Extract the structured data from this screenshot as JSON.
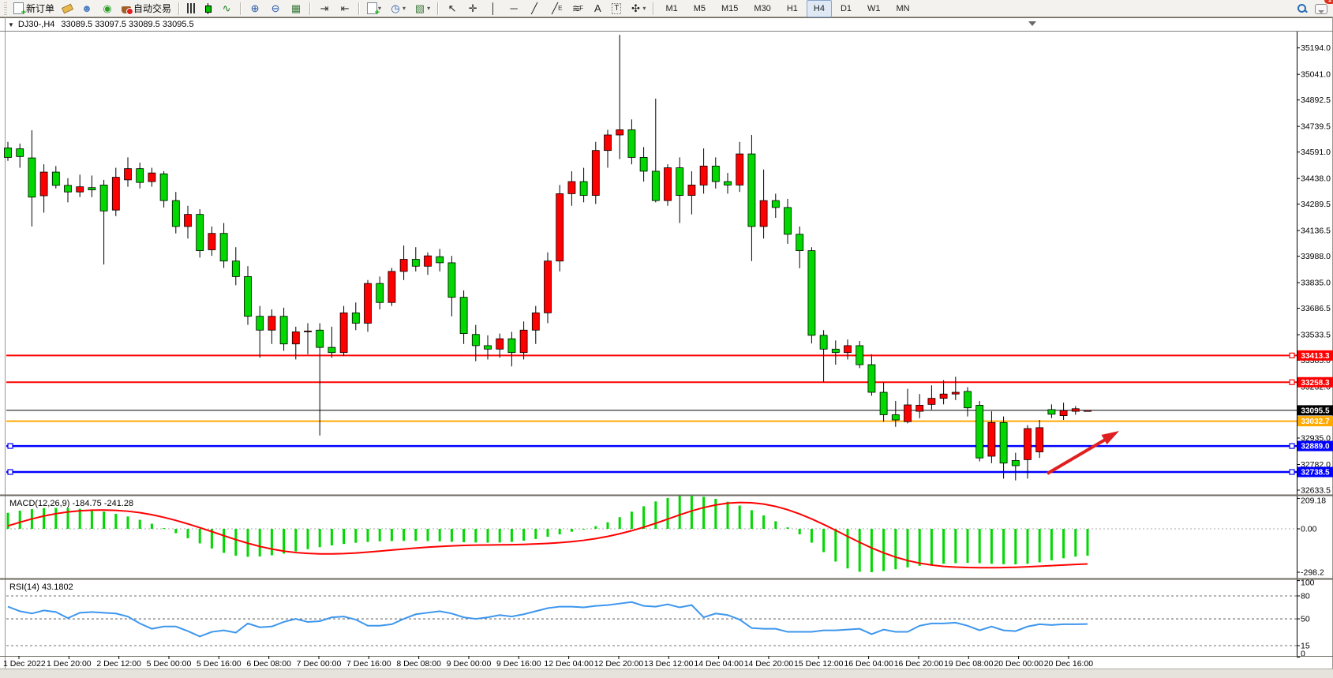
{
  "toolbar": {
    "items": [
      {
        "t": "grip"
      },
      {
        "t": "btn",
        "name": "new-order-button",
        "css": "i-docplus",
        "label": "新订单"
      },
      {
        "t": "btn",
        "name": "eraser-tool-button",
        "css": "i-eraser"
      },
      {
        "t": "btn",
        "name": "expert-advisors-button",
        "g": "☻",
        "c": "#4a7ebf"
      },
      {
        "t": "btn",
        "name": "signals-button",
        "g": "◉",
        "c": "#2aa02a"
      },
      {
        "t": "btn",
        "name": "autotrading-button",
        "css": "i-pot",
        "label": "自动交易"
      },
      {
        "t": "sep"
      },
      {
        "t": "btn",
        "name": "bar-chart-button",
        "css": "i-bars"
      },
      {
        "t": "btn",
        "name": "candlestick-chart-button",
        "css": "i-candle"
      },
      {
        "t": "btn",
        "name": "line-chart-button",
        "g": "∿",
        "c": "#1c7a1c"
      },
      {
        "t": "sep"
      },
      {
        "t": "btn",
        "name": "zoom-in-button",
        "g": "⊕",
        "c": "#2458a8"
      },
      {
        "t": "btn",
        "name": "zoom-out-button",
        "g": "⊖",
        "c": "#2458a8"
      },
      {
        "t": "btn",
        "name": "tile-windows-button",
        "g": "▦",
        "c": "#3a7a3a"
      },
      {
        "t": "sep"
      },
      {
        "t": "btn",
        "name": "chart-shift-button",
        "g": "⇥",
        "c": "#333333"
      },
      {
        "t": "btn",
        "name": "auto-scroll-button",
        "g": "⇤",
        "c": "#333333"
      },
      {
        "t": "sep"
      },
      {
        "t": "btn",
        "name": "new-chart-button",
        "css": "i-docplus",
        "dd": true
      },
      {
        "t": "btn",
        "name": "periods-button",
        "g": "◷",
        "c": "#2458a8",
        "dd": true
      },
      {
        "t": "btn",
        "name": "chart-profile-button",
        "g": "▧",
        "c": "#3a7a3a",
        "dd": true
      },
      {
        "t": "sep"
      },
      {
        "t": "btn",
        "name": "cursor-tool-button",
        "g": "↖",
        "c": "#222222"
      },
      {
        "t": "btn",
        "name": "crosshair-tool-button",
        "g": "✛",
        "c": "#222222"
      },
      {
        "t": "btn",
        "name": "vertical-line-tool-button",
        "g": "│",
        "c": "#222222"
      },
      {
        "t": "btn",
        "name": "horizontal-line-tool-button",
        "g": "─",
        "c": "#222222"
      },
      {
        "t": "btn",
        "name": "trendline-tool-button",
        "g": "╱",
        "c": "#222222"
      },
      {
        "t": "btn",
        "name": "equidistant-channel-tool-button",
        "g": "╱",
        "c": "#222222",
        "sub": "E"
      },
      {
        "t": "btn",
        "name": "fibonacci-tool-button",
        "g": "≋",
        "c": "#222222",
        "sub": "F"
      },
      {
        "t": "btn",
        "name": "text-tool-button",
        "g": "A",
        "c": "#222222"
      },
      {
        "t": "btn",
        "name": "text-label-tool-button",
        "g": "T",
        "c": "#222222",
        "box": true
      },
      {
        "t": "btn",
        "name": "arrows-tool-button",
        "g": "✣",
        "c": "#222222",
        "dd": true
      },
      {
        "t": "sep"
      },
      {
        "t": "tf",
        "name": "timeframe-m1-button",
        "label": "M1"
      },
      {
        "t": "tf",
        "name": "timeframe-m5-button",
        "label": "M5"
      },
      {
        "t": "tf",
        "name": "timeframe-m15-button",
        "label": "M15"
      },
      {
        "t": "tf",
        "name": "timeframe-m30-button",
        "label": "M30"
      },
      {
        "t": "tf",
        "name": "timeframe-h1-button",
        "label": "H1"
      },
      {
        "t": "tf",
        "name": "timeframe-h4-button",
        "label": "H4",
        "active": true
      },
      {
        "t": "tf",
        "name": "timeframe-d1-button",
        "label": "D1"
      },
      {
        "t": "tf",
        "name": "timeframe-w1-button",
        "label": "W1"
      },
      {
        "t": "tf",
        "name": "timeframe-mn-button",
        "label": "MN"
      },
      {
        "t": "spacer"
      },
      {
        "t": "btn",
        "name": "search-button",
        "css": "i-mag"
      },
      {
        "t": "btn",
        "name": "notifications-button",
        "css": "i-chat",
        "badge": "1"
      }
    ]
  },
  "title": {
    "symbol": "DJ30-,H4",
    "ohlc": "33089.5 33097.5 33089.5 33095.5"
  },
  "indicators": {
    "macd_label": "MACD(12,26,9) -184.75 -241.28",
    "rsi_label": "RSI(14) 43.1802"
  },
  "chart_data": {
    "type": "candlestick",
    "symbol": "DJ30-",
    "timeframe": "H4",
    "current_bar": {
      "open": 33089.5,
      "high": 33097.5,
      "low": 33089.5,
      "close": 33095.5
    },
    "up_color": "#ff0000",
    "down_color": "#00d800",
    "price_axis_ticks": [
      "35194.0",
      "35041.0",
      "34892.5",
      "34739.5",
      "34591.0",
      "34438.0",
      "34289.5",
      "34136.5",
      "33988.0",
      "33835.0",
      "33686.5",
      "33533.5",
      "33385.0",
      "33232.0",
      "33083.5",
      "32935.0",
      "32782.0",
      "32633.5"
    ],
    "price_lines": [
      {
        "value": 33413.3,
        "label": "33413.3",
        "color": "#ff0000",
        "width": 2,
        "handles": "right"
      },
      {
        "value": 33258.3,
        "label": "33258.3",
        "color": "#ff0000",
        "width": 2,
        "handles": "right"
      },
      {
        "value": 33095.5,
        "label": "33095.5",
        "color": "#000000",
        "width": 1,
        "handles": "none"
      },
      {
        "value": 33032.7,
        "label": "33032.7",
        "color": "#ffa800",
        "width": 2,
        "handles": "none"
      },
      {
        "value": 32889.0,
        "label": "32889.0",
        "color": "#0000ff",
        "width": 2.5,
        "handles": "both"
      },
      {
        "value": 32738.5,
        "label": "32738.5",
        "color": "#0000ff",
        "width": 2.5,
        "handles": "both"
      }
    ],
    "time_labels": [
      "1 Dec 2022",
      "1 Dec 20:00",
      "2 Dec 12:00",
      "5 Dec 00:00",
      "5 Dec 16:00",
      "6 Dec 08:00",
      "7 Dec 00:00",
      "7 Dec 16:00",
      "8 Dec 08:00",
      "9 Dec 00:00",
      "9 Dec 16:00",
      "12 Dec 04:00",
      "12 Dec 20:00",
      "13 Dec 12:00",
      "14 Dec 04:00",
      "14 Dec 20:00",
      "15 Dec 12:00",
      "16 Dec 04:00",
      "16 Dec 20:00",
      "19 Dec 08:00",
      "20 Dec 00:00",
      "20 Dec 16:00"
    ],
    "candles": [
      [
        34615,
        34650,
        34540,
        34560
      ],
      [
        34610,
        34640,
        34500,
        34565
      ],
      [
        34557,
        34717,
        34160,
        34330
      ],
      [
        34338,
        34520,
        34240,
        34475
      ],
      [
        34475,
        34510,
        34380,
        34398
      ],
      [
        34398,
        34440,
        34300,
        34360
      ],
      [
        34360,
        34460,
        34330,
        34390
      ],
      [
        34385,
        34455,
        34330,
        34372
      ],
      [
        34400,
        34430,
        33940,
        34250
      ],
      [
        34255,
        34500,
        34220,
        34445
      ],
      [
        34430,
        34560,
        34390,
        34495
      ],
      [
        34495,
        34530,
        34380,
        34415
      ],
      [
        34420,
        34500,
        34390,
        34470
      ],
      [
        34465,
        34480,
        34270,
        34310
      ],
      [
        34310,
        34360,
        34120,
        34160
      ],
      [
        34160,
        34280,
        34090,
        34230
      ],
      [
        34230,
        34260,
        33980,
        34020
      ],
      [
        34025,
        34160,
        33990,
        34120
      ],
      [
        34120,
        34180,
        33920,
        33960
      ],
      [
        33960,
        34040,
        33820,
        33870
      ],
      [
        33870,
        33930,
        33590,
        33640
      ],
      [
        33640,
        33700,
        33400,
        33560
      ],
      [
        33560,
        33680,
        33480,
        33640
      ],
      [
        33640,
        33690,
        33440,
        33480
      ],
      [
        33480,
        33580,
        33390,
        33550
      ],
      [
        33550,
        33600,
        33420,
        33555
      ],
      [
        33560,
        33600,
        32950,
        33460
      ],
      [
        33460,
        33580,
        33400,
        33430
      ],
      [
        33430,
        33700,
        33410,
        33660
      ],
      [
        33660,
        33720,
        33560,
        33600
      ],
      [
        33600,
        33850,
        33550,
        33830
      ],
      [
        33830,
        33870,
        33680,
        33720
      ],
      [
        33720,
        33920,
        33700,
        33900
      ],
      [
        33900,
        34050,
        33850,
        33970
      ],
      [
        33970,
        34040,
        33900,
        33930
      ],
      [
        33930,
        34010,
        33880,
        33990
      ],
      [
        33985,
        34030,
        33900,
        33950
      ],
      [
        33950,
        33990,
        33640,
        33750
      ],
      [
        33750,
        33790,
        33480,
        33540
      ],
      [
        33535,
        33590,
        33380,
        33470
      ],
      [
        33470,
        33530,
        33390,
        33450
      ],
      [
        33450,
        33540,
        33400,
        33510
      ],
      [
        33510,
        33550,
        33350,
        33430
      ],
      [
        33430,
        33610,
        33390,
        33560
      ],
      [
        33560,
        33700,
        33480,
        33660
      ],
      [
        33660,
        34010,
        33600,
        33960
      ],
      [
        33960,
        34400,
        33900,
        34350
      ],
      [
        34350,
        34480,
        34280,
        34420
      ],
      [
        34420,
        34500,
        34300,
        34340
      ],
      [
        34340,
        34650,
        34290,
        34600
      ],
      [
        34600,
        34720,
        34500,
        34690
      ],
      [
        34690,
        35270,
        34550,
        34720
      ],
      [
        34720,
        34780,
        34520,
        34560
      ],
      [
        34560,
        34620,
        34420,
        34480
      ],
      [
        34480,
        34900,
        34300,
        34310
      ],
      [
        34310,
        34520,
        34280,
        34500
      ],
      [
        34500,
        34560,
        34180,
        34340
      ],
      [
        34340,
        34480,
        34230,
        34400
      ],
      [
        34400,
        34612,
        34350,
        34510
      ],
      [
        34510,
        34560,
        34380,
        34420
      ],
      [
        34420,
        34470,
        34350,
        34400
      ],
      [
        34400,
        34650,
        34360,
        34580
      ],
      [
        34580,
        34690,
        33960,
        34160
      ],
      [
        34160,
        34490,
        34090,
        34310
      ],
      [
        34310,
        34350,
        34210,
        34270
      ],
      [
        34270,
        34320,
        34060,
        34115
      ],
      [
        34115,
        34160,
        33918,
        34020
      ],
      [
        34020,
        34040,
        33483,
        33530
      ],
      [
        33530,
        33560,
        33260,
        33450
      ],
      [
        33450,
        33500,
        33360,
        33430
      ],
      [
        33430,
        33506,
        33390,
        33470
      ],
      [
        33470,
        33497,
        33340,
        33360
      ],
      [
        33360,
        33420,
        33180,
        33200
      ],
      [
        33200,
        33260,
        33030,
        33070
      ],
      [
        33070,
        33150,
        33000,
        33040
      ],
      [
        33030,
        33220,
        33020,
        33127
      ],
      [
        33090,
        33190,
        33050,
        33125
      ],
      [
        33130,
        33240,
        33100,
        33165
      ],
      [
        33165,
        33270,
        33130,
        33190
      ],
      [
        33190,
        33290,
        33155,
        33200
      ],
      [
        33205,
        33230,
        33060,
        33110
      ],
      [
        33125,
        33150,
        32800,
        32820
      ],
      [
        32830,
        33090,
        32790,
        33025
      ],
      [
        33025,
        33060,
        32700,
        32790
      ],
      [
        32805,
        32850,
        32690,
        32775
      ],
      [
        32810,
        33010,
        32700,
        32990
      ],
      [
        32855,
        33040,
        32820,
        32995
      ],
      [
        33100,
        33130,
        33050,
        33073
      ],
      [
        33065,
        33140,
        33040,
        33095
      ],
      [
        33090,
        33120,
        33070,
        33105
      ],
      [
        33089.5,
        33097.5,
        33089.5,
        33095.5
      ]
    ],
    "macd": {
      "params": "12,26,9",
      "axis": [
        "209.18",
        "0.00",
        "-298.2"
      ],
      "hist_color": "#00d800",
      "signal_color": "#ff0000",
      "hist": [
        110,
        125,
        135,
        142,
        144,
        143,
        138,
        130,
        118,
        103,
        85,
        62,
        35,
        5,
        -30,
        -65,
        -100,
        -135,
        -165,
        -185,
        -192,
        -190,
        -182,
        -170,
        -155,
        -140,
        -126,
        -114,
        -104,
        -96,
        -90,
        -86,
        -84,
        -83,
        -83,
        -84,
        -86,
        -89,
        -92,
        -94,
        -95,
        -94,
        -90,
        -82,
        -70,
        -55,
        -38,
        -20,
        -2,
        18,
        45,
        80,
        118,
        155,
        188,
        212,
        225,
        227,
        220,
        206,
        186,
        160,
        128,
        92,
        52,
        10,
        -38,
        -95,
        -160,
        -225,
        -272,
        -295,
        -298,
        -290,
        -278,
        -265,
        -254,
        -246,
        -240,
        -236,
        -234,
        -236,
        -240,
        -243,
        -244,
        -240,
        -230,
        -216,
        -202,
        -191,
        -184.75
      ],
      "signal": [
        20,
        45,
        68,
        88,
        104,
        116,
        124,
        128,
        129,
        127,
        121,
        111,
        97,
        79,
        58,
        34,
        8,
        -19,
        -47,
        -74,
        -99,
        -121,
        -139,
        -153,
        -163,
        -169,
        -172,
        -172,
        -170,
        -166,
        -160,
        -153,
        -146,
        -139,
        -132,
        -126,
        -121,
        -117,
        -114,
        -112,
        -111,
        -110,
        -109,
        -107,
        -104,
        -100,
        -95,
        -88,
        -79,
        -67,
        -52,
        -34,
        -13,
        11,
        38,
        67,
        96,
        123,
        146,
        164,
        176,
        181,
        179,
        170,
        154,
        131,
        102,
        68,
        30,
        -10,
        -52,
        -93,
        -131,
        -165,
        -194,
        -218,
        -236,
        -249,
        -258,
        -263,
        -266,
        -267,
        -267,
        -266,
        -264,
        -261,
        -257,
        -253,
        -249,
        -245,
        -241.28
      ]
    },
    "rsi": {
      "period": 14,
      "axis": [
        "100",
        "80",
        "50",
        "15",
        "0"
      ],
      "levels": [
        80,
        50,
        15
      ],
      "color": "#3d96ee",
      "values": [
        66,
        60,
        57,
        61,
        59,
        51,
        58,
        59,
        58,
        57,
        53,
        44,
        37,
        40,
        40,
        34,
        27,
        33,
        35,
        32,
        44,
        39,
        40,
        46,
        50,
        46,
        47,
        52,
        53,
        49,
        41,
        41,
        43,
        50,
        56,
        58,
        60,
        57,
        52,
        50,
        52,
        55,
        53,
        56,
        60,
        64,
        66,
        66,
        65,
        67,
        68,
        70,
        72,
        67,
        66,
        69,
        65,
        68,
        52,
        57,
        55,
        49,
        38,
        37,
        37,
        33,
        33,
        33,
        35,
        35,
        36,
        37,
        30,
        36,
        33,
        33,
        41,
        44,
        44,
        45,
        41,
        35,
        40,
        35,
        34,
        40,
        43,
        42,
        43,
        43,
        43.18
      ]
    },
    "annotation_arrow": {
      "color": "#e02020",
      "from_price": 32730,
      "to_price": 32970,
      "note": "up-trend arrow near last lows"
    }
  }
}
